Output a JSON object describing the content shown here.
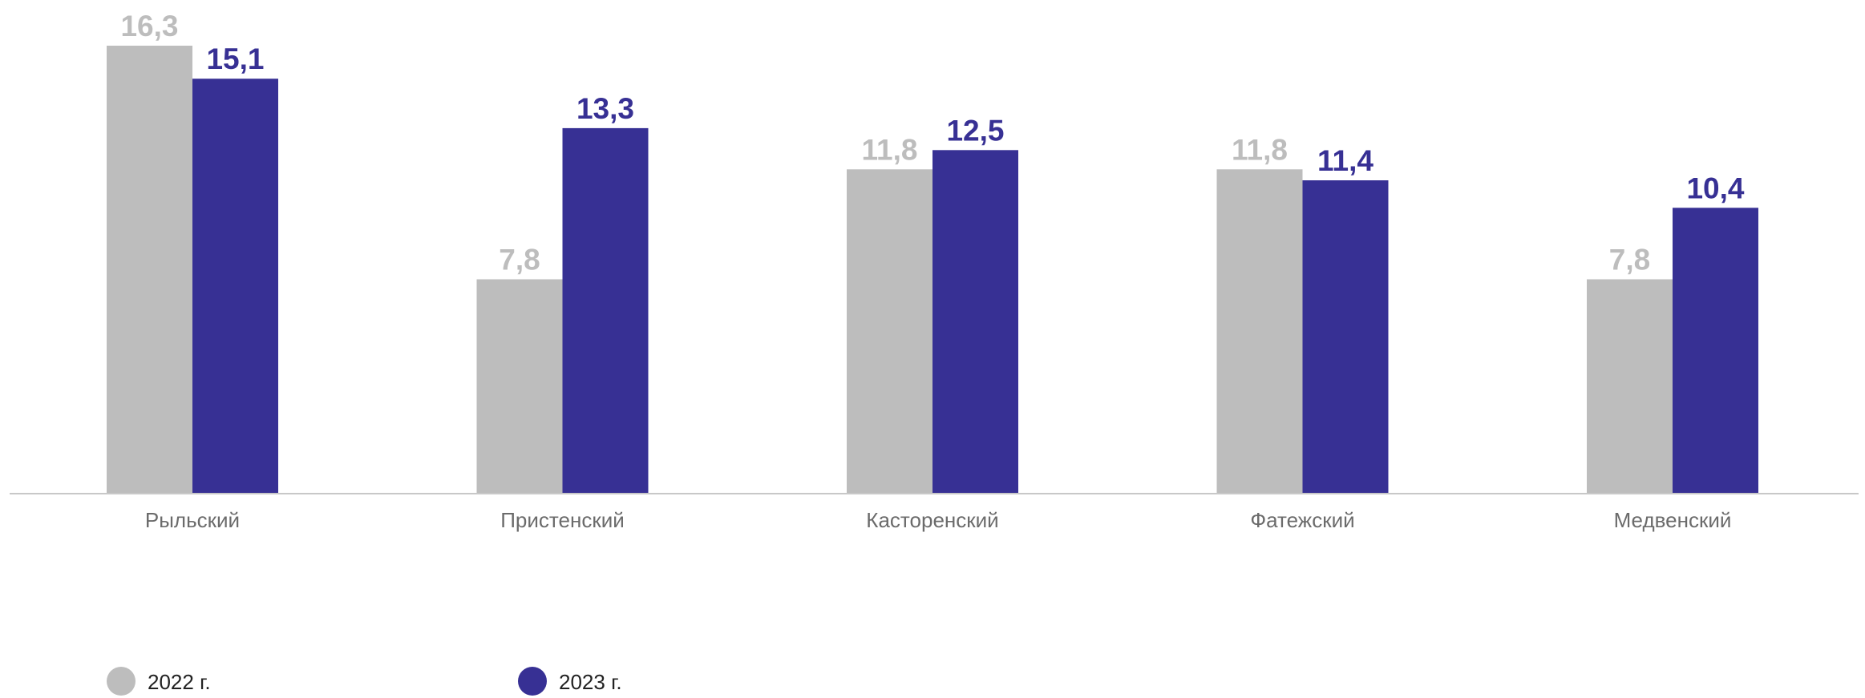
{
  "chart_data": {
    "type": "bar",
    "categories": [
      "Рыльский",
      "Пристенский",
      "Касторенский",
      "Фатежский",
      "Медвенский"
    ],
    "series": [
      {
        "name": "2022 г.",
        "values": [
          16.3,
          7.8,
          11.8,
          11.8,
          7.8
        ],
        "color": "#bdbdbd"
      },
      {
        "name": "2023 г.",
        "values": [
          15.1,
          13.3,
          12.5,
          11.4,
          10.4
        ],
        "color": "#373094"
      }
    ],
    "value_labels": [
      [
        "16,3",
        "7,8",
        "11,8",
        "11,8",
        "7,8"
      ],
      [
        "15,1",
        "13,3",
        "12,5",
        "11,4",
        "10,4"
      ]
    ],
    "ylim": [
      0,
      16.3
    ],
    "grid": false,
    "legend_position": "bottom-left",
    "axis_color": "#c8c8c8"
  }
}
